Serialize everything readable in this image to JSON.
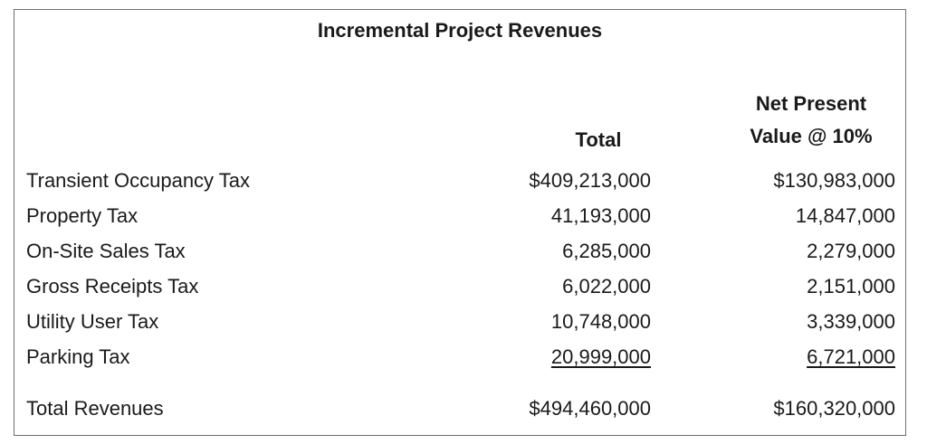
{
  "title": "Incremental Project Revenues",
  "headers": {
    "total": "Total",
    "npv_line1": "Net Present",
    "npv_line2": "Value @ 10%"
  },
  "rows": [
    {
      "label": "Transient Occupancy Tax",
      "total": "$409,213,000",
      "npv": "$130,983,000"
    },
    {
      "label": "Property Tax",
      "total": "41,193,000",
      "npv": "14,847,000"
    },
    {
      "label": "On-Site Sales Tax",
      "total": "6,285,000",
      "npv": "2,279,000"
    },
    {
      "label": "Gross Receipts Tax",
      "total": "6,022,000",
      "npv": "2,151,000"
    },
    {
      "label": "Utility User Tax",
      "total": "10,748,000",
      "npv": "3,339,000"
    },
    {
      "label": "Parking Tax",
      "total": "20,999,000",
      "npv": "6,721,000"
    }
  ],
  "total_row": {
    "label": "Total Revenues",
    "total": "$494,460,000",
    "npv": "$160,320,000"
  }
}
